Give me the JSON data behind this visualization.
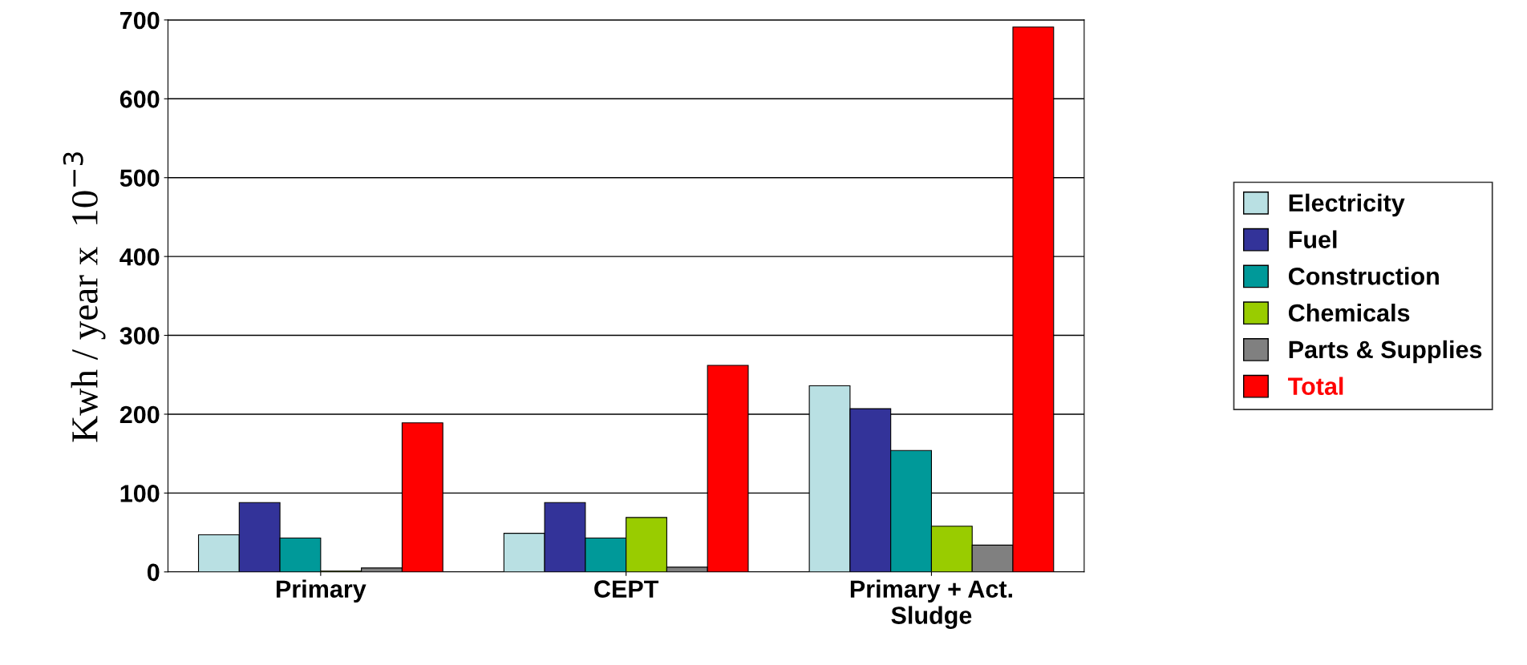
{
  "chart_data": {
    "type": "bar",
    "ylabel": "Kwh / year x  10$^{−3}$",
    "categories": [
      "Primary",
      "CEPT",
      "Primary + Act.\nSludge"
    ],
    "series": [
      {
        "name": "Electricity",
        "color": "#b9e0e3",
        "values": [
          47,
          49,
          236
        ]
      },
      {
        "name": "Fuel",
        "color": "#333399",
        "values": [
          88,
          88,
          207
        ]
      },
      {
        "name": "Construction",
        "color": "#009999",
        "values": [
          43,
          43,
          154
        ]
      },
      {
        "name": "Chemicals",
        "color": "#99cc00",
        "values": [
          1,
          69,
          58
        ]
      },
      {
        "name": "Parts & Supplies",
        "color": "#808080",
        "values": [
          5,
          6,
          34
        ]
      },
      {
        "name": "Total",
        "color": "#ff0000",
        "values": [
          189,
          262,
          691
        ]
      }
    ],
    "ylim": [
      0,
      700
    ],
    "yticks": [
      0,
      100,
      200,
      300,
      400,
      500,
      600,
      700
    ],
    "grid": "y",
    "legend": "right"
  }
}
